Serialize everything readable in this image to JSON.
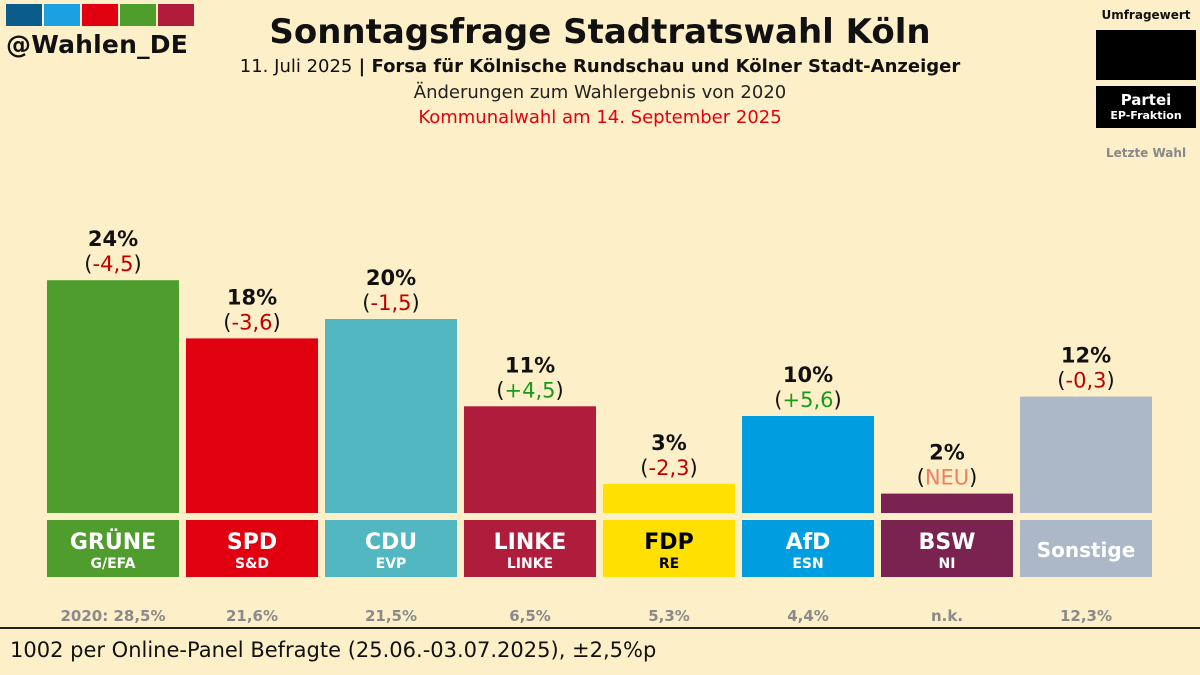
{
  "handle": "@Wahlen_DE",
  "logo_colors": [
    "#0a5c8a",
    "#1ba1e2",
    "#e1000f",
    "#4f9d2d",
    "#b01c3c"
  ],
  "header": {
    "title": "Sonntagsfrage Stadtratswahl Köln",
    "date": "11. Juli 2025",
    "separator": " | ",
    "source": "Forsa für Kölnische Rundschau und Kölner Stadt-Anzeiger",
    "changes_note": "Änderungen zum Wahlergebnis von 2020",
    "election_note": "Kommunalwahl am 14. September 2025"
  },
  "legend": {
    "value_label": "Umfragewert",
    "party_label": "Partei",
    "fraktion_label": "EP-Fraktion",
    "last_label": "Letzte Wahl"
  },
  "chart_data": {
    "type": "bar",
    "title": "Sonntagsfrage Stadtratswahl Köln",
    "ylim": [
      0,
      30
    ],
    "unit": "%",
    "categories": [
      "GRÜNE",
      "SPD",
      "CDU",
      "LINKE",
      "FDP",
      "AfD",
      "BSW",
      "Sonstige"
    ],
    "values": [
      24,
      18,
      20,
      11,
      3,
      10,
      2,
      12
    ],
    "value_labels": [
      "24%",
      "18%",
      "20%",
      "11%",
      "3%",
      "10%",
      "2%",
      "12%"
    ],
    "change_labels": [
      "-4,5",
      "-3,6",
      "-1,5",
      "+4,5",
      "-2,3",
      "+5,6",
      "NEU",
      "-0,3"
    ],
    "fraktions": [
      "G/EFA",
      "S&D",
      "EVP",
      "LINKE",
      "RE",
      "ESN",
      "NI",
      ""
    ],
    "last_results": [
      "2020: 28,5%",
      "21,6%",
      "21,5%",
      "6,5%",
      "5,3%",
      "4,4%",
      "n.k.",
      "12,3%"
    ],
    "colors": [
      "#4f9d2d",
      "#e1000f",
      "#52b7c1",
      "#b01c3c",
      "#ffe000",
      "#009ee0",
      "#7a2250",
      "#acb8c8"
    ],
    "label_text_colors": [
      "#ffffff",
      "#ffffff",
      "#ffffff",
      "#ffffff",
      "#000000",
      "#ffffff",
      "#ffffff",
      "#ffffff"
    ],
    "change_colors": [
      "#c00000",
      "#c00000",
      "#c00000",
      "#1a9a1a",
      "#c00000",
      "#1a9a1a",
      "#f08060",
      "#c00000"
    ]
  },
  "footer": "1002 per Online-Panel Befragte (25.06.-03.07.2025), ±2,5%p"
}
